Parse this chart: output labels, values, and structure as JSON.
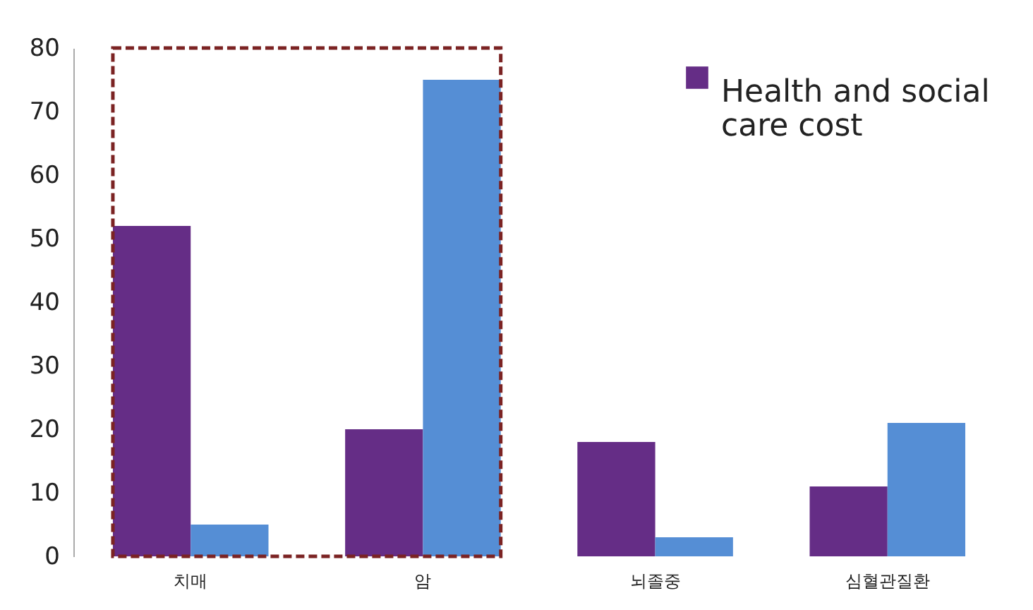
{
  "chart_data": {
    "type": "bar",
    "categories": [
      "치매",
      "암",
      "뇌졸중",
      "심혈관질환"
    ],
    "series": [
      {
        "name": "Health and social care cost",
        "color": "#652d86",
        "values": [
          52,
          20,
          18,
          11
        ]
      },
      {
        "color": "#558ed5",
        "values": [
          5,
          75,
          3,
          21
        ]
      }
    ],
    "ylim": [
      0,
      80
    ],
    "yticks": [
      0,
      10,
      20,
      30,
      40,
      50,
      60,
      70,
      80
    ],
    "grid": false,
    "legend": "top right"
  }
}
